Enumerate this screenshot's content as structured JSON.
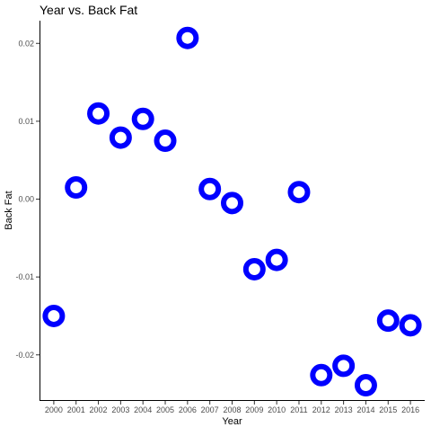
{
  "chart_data": {
    "type": "scatter",
    "title": "Year vs.  Back Fat",
    "xlabel": "Year",
    "ylabel": "Back Fat",
    "x": [
      2000,
      2001,
      2002,
      2003,
      2004,
      2005,
      2006,
      2007,
      2008,
      2009,
      2010,
      2011,
      2012,
      2013,
      2014,
      2015,
      2016
    ],
    "x_tick_labels": [
      "2000",
      "2001",
      "2002",
      "2003",
      "2004",
      "2005",
      "2006",
      "2007",
      "2008",
      "2009",
      "2010",
      "2011",
      "2012",
      "2013",
      "2014",
      "2015",
      "2016"
    ],
    "y": [
      -0.015,
      0.0015,
      0.011,
      0.0079,
      0.0103,
      0.0075,
      0.0207,
      0.0013,
      -0.0005,
      -0.009,
      -0.0078,
      0.0009,
      -0.0226,
      -0.0214,
      -0.0239,
      -0.0156,
      -0.0162
    ],
    "y_ticks": [
      -0.02,
      -0.01,
      0.0,
      0.01,
      0.02
    ],
    "y_tick_labels": [
      "-0.02",
      "-0.01",
      "0.00",
      "0.01",
      "0.02"
    ],
    "xlim": [
      1999.4,
      2016.6
    ],
    "ylim": [
      -0.0258,
      0.0228
    ],
    "grid": false,
    "legend": "none",
    "marker": "ring",
    "marker_color": "#0000ff"
  }
}
